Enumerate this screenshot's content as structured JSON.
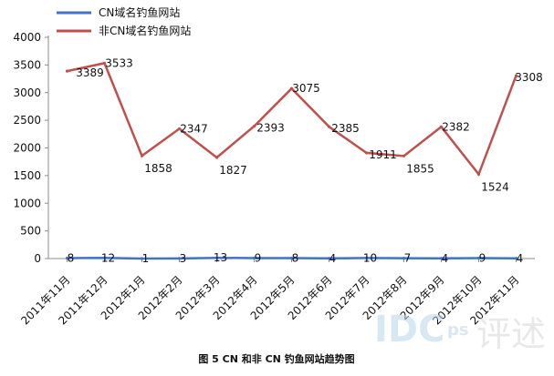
{
  "chart_data": {
    "type": "line",
    "categories": [
      "2011年11月",
      "2011年12月",
      "2012年1月",
      "2012年2月",
      "2012年3月",
      "2012年4月",
      "2012年5月",
      "2012年6月",
      "2012年7月",
      "2012年8月",
      "2012年9月",
      "2012年10月",
      "2012年11月"
    ],
    "series": [
      {
        "name": "CN域名钓鱼网站",
        "values": [
          8,
          12,
          1,
          3,
          13,
          9,
          8,
          4,
          10,
          7,
          4,
          9,
          4
        ],
        "color": "#4472c4"
      },
      {
        "name": "非CN域名钓鱼网站",
        "values": [
          3389,
          3533,
          1858,
          2347,
          1827,
          2393,
          3075,
          2385,
          1911,
          1855,
          2382,
          1524,
          3308
        ],
        "color": "#c0504d"
      }
    ],
    "ylim": [
      0,
      4000
    ],
    "yticks": [
      0,
      500,
      1000,
      1500,
      2000,
      2500,
      3000,
      3500,
      4000
    ],
    "grid": false,
    "legend_position": "top-left",
    "data_labels": true
  },
  "caption": "图 5 CN 和非 CN 钓鱼网站趋势图",
  "watermark": {
    "text": "IDC",
    "subscript": "ps",
    "seal": "评述"
  }
}
